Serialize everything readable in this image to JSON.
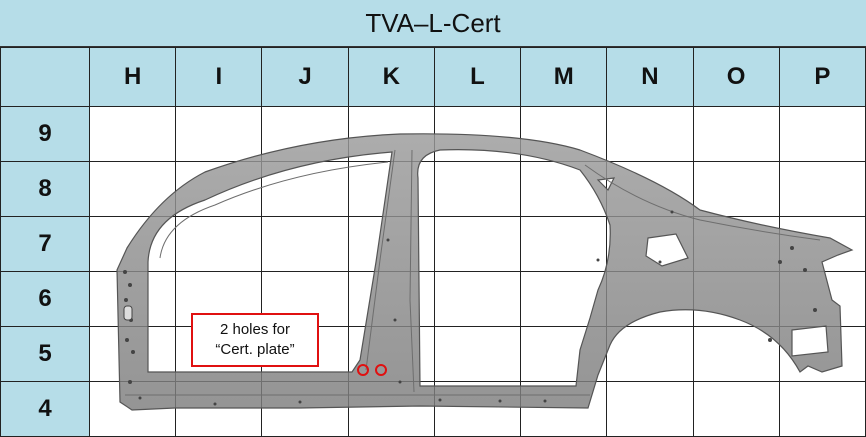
{
  "title": "TVA–L-Cert",
  "columns": [
    "H",
    "I",
    "J",
    "K",
    "L",
    "M",
    "N",
    "O",
    "P"
  ],
  "rows": [
    "9",
    "8",
    "7",
    "6",
    "5",
    "4"
  ],
  "callout": {
    "line1": "2 holes for",
    "line2": "“Cert. plate”"
  },
  "colors": {
    "header_fill": "#b6dde8",
    "part_fill": "#8c8c8c",
    "part_edge": "#555555",
    "highlight": "#e01010"
  },
  "icons": [
    "vehicle-body-side-panel",
    "hole-marker"
  ]
}
